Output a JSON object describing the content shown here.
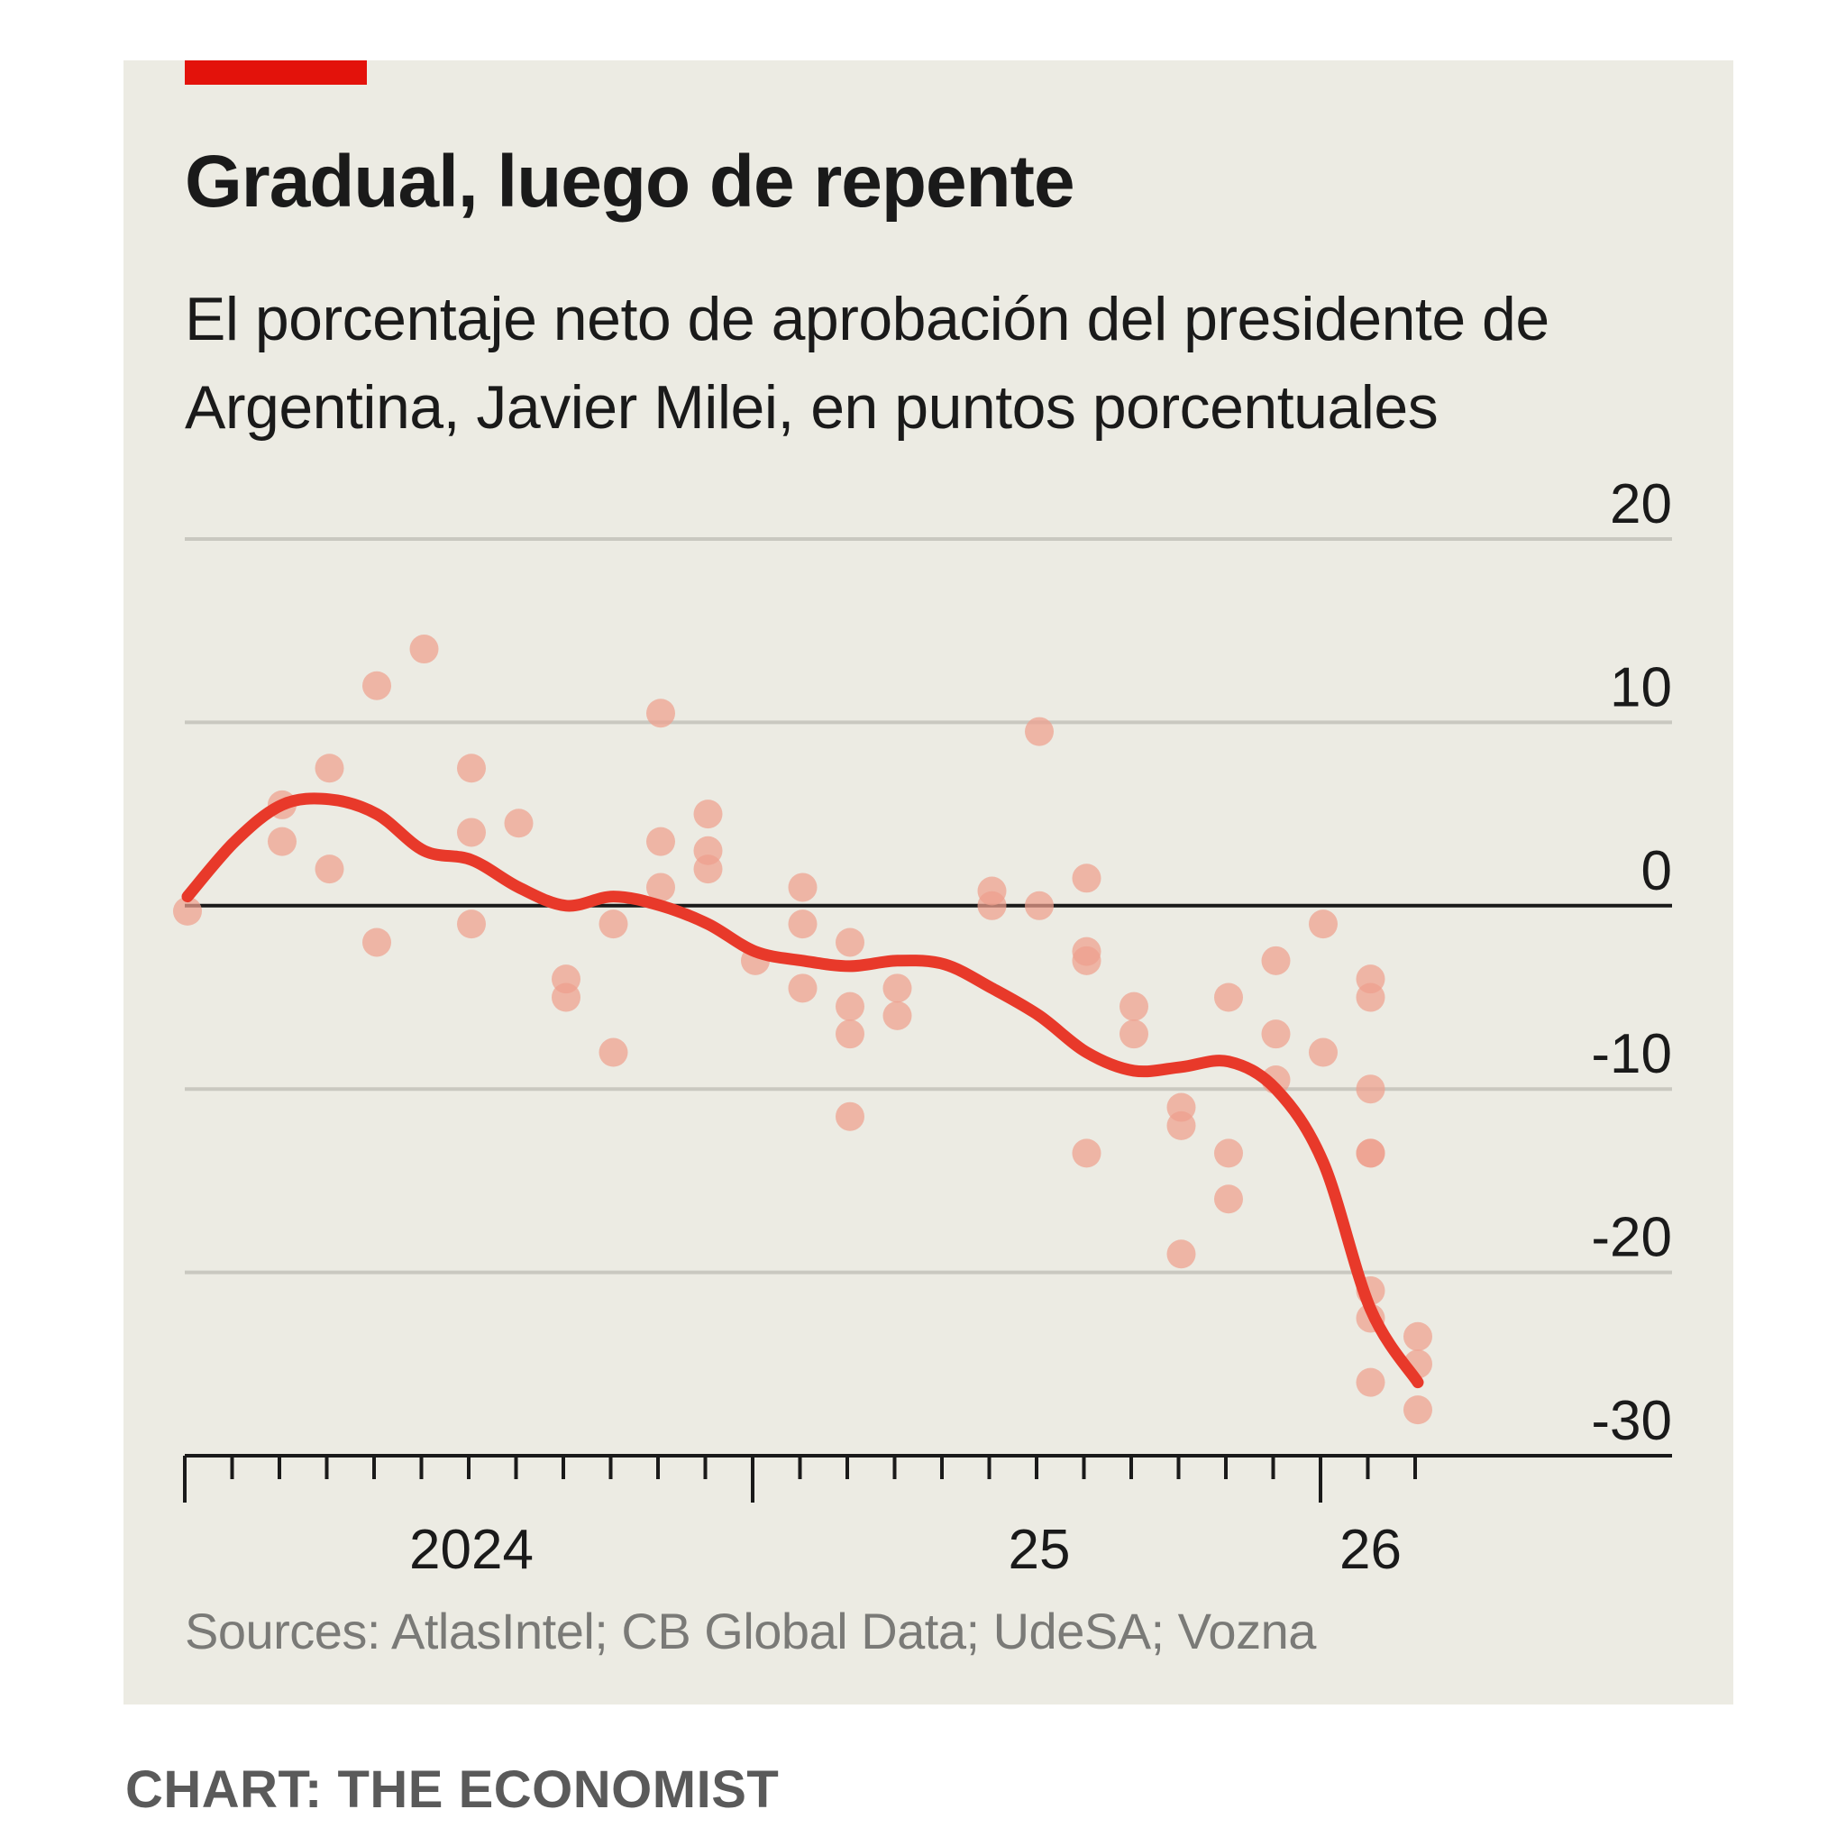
{
  "title": "Gradual, luego de repente",
  "subtitle": "El porcentaje neto de aprobación del presidente de Argentina, Javier Milei, en puntos porcentuales",
  "source": "Sources: AtlasIntel; CB Global Data; UdeSA; Vozna",
  "credit": "CHART: THE ECONOMIST",
  "colors": {
    "background": "#ecebe3",
    "accent": "#e3120b",
    "trend_line": "#e8392a",
    "dots": "#eea08e",
    "gridline": "#c9c8c0",
    "zero_line": "#1a1a1a"
  },
  "chart_data": {
    "type": "scatter",
    "title": "Gradual, luego de repente",
    "subtitle": "El porcentaje neto de aprobación del presidente de Argentina, Javier Milei, en puntos porcentuales",
    "ylim": [
      -30,
      20
    ],
    "y_ticks": [
      20,
      10,
      0,
      -10,
      -20,
      -30
    ],
    "y_tick_labels": [
      "20",
      "10",
      "0",
      "-10",
      "-20",
      "-30"
    ],
    "y_axis_position": "right",
    "x_range": [
      "2023-12",
      "2026-02"
    ],
    "x_tick_labels": [
      {
        "x": "2024-06",
        "label": "2024"
      },
      {
        "x": "2025-06",
        "label": "25"
      },
      {
        "x": "2026-01",
        "label": "26"
      }
    ],
    "grid": true,
    "series": [
      {
        "kind": "points",
        "values": [
          {
            "x": "2023-12",
            "y": -0.3
          },
          {
            "x": "2024-02",
            "y": 5.5
          },
          {
            "x": "2024-02",
            "y": 3.5
          },
          {
            "x": "2024-03",
            "y": 7.5
          },
          {
            "x": "2024-03",
            "y": 2
          },
          {
            "x": "2024-04",
            "y": 12
          },
          {
            "x": "2024-04",
            "y": -2
          },
          {
            "x": "2024-05",
            "y": 14
          },
          {
            "x": "2024-06",
            "y": 7.5
          },
          {
            "x": "2024-06",
            "y": 4
          },
          {
            "x": "2024-06",
            "y": -1
          },
          {
            "x": "2024-07",
            "y": 4.5
          },
          {
            "x": "2024-08",
            "y": -4
          },
          {
            "x": "2024-08",
            "y": -5
          },
          {
            "x": "2024-09",
            "y": -1
          },
          {
            "x": "2024-09",
            "y": -8
          },
          {
            "x": "2024-10",
            "y": 10.5
          },
          {
            "x": "2024-10",
            "y": 3.5
          },
          {
            "x": "2024-10",
            "y": 1
          },
          {
            "x": "2024-11",
            "y": 5
          },
          {
            "x": "2024-11",
            "y": 3
          },
          {
            "x": "2024-11",
            "y": 2
          },
          {
            "x": "2024-12",
            "y": -3
          },
          {
            "x": "2025-01",
            "y": 1
          },
          {
            "x": "2025-01",
            "y": -1
          },
          {
            "x": "2025-01",
            "y": -4.5
          },
          {
            "x": "2025-02",
            "y": -2
          },
          {
            "x": "2025-02",
            "y": -5.5
          },
          {
            "x": "2025-02",
            "y": -7
          },
          {
            "x": "2025-02",
            "y": -11.5
          },
          {
            "x": "2025-03",
            "y": -4.5
          },
          {
            "x": "2025-03",
            "y": -6
          },
          {
            "x": "2025-05",
            "y": 0.8
          },
          {
            "x": "2025-05",
            "y": 0
          },
          {
            "x": "2025-06",
            "y": 9.5
          },
          {
            "x": "2025-06",
            "y": 0
          },
          {
            "x": "2025-07",
            "y": 1.5
          },
          {
            "x": "2025-07",
            "y": -2.5
          },
          {
            "x": "2025-07",
            "y": -3
          },
          {
            "x": "2025-07",
            "y": -13.5
          },
          {
            "x": "2025-08",
            "y": -5.5
          },
          {
            "x": "2025-08",
            "y": -7
          },
          {
            "x": "2025-09",
            "y": -11
          },
          {
            "x": "2025-09",
            "y": -12
          },
          {
            "x": "2025-09",
            "y": -19
          },
          {
            "x": "2025-10",
            "y": -5
          },
          {
            "x": "2025-10",
            "y": -13.5
          },
          {
            "x": "2025-10",
            "y": -16
          },
          {
            "x": "2025-11",
            "y": -3
          },
          {
            "x": "2025-11",
            "y": -7
          },
          {
            "x": "2025-11",
            "y": -9.5
          },
          {
            "x": "2025-12",
            "y": -1
          },
          {
            "x": "2025-12",
            "y": -8
          },
          {
            "x": "2026-01",
            "y": -4
          },
          {
            "x": "2026-01",
            "y": -5
          },
          {
            "x": "2026-01",
            "y": -10
          },
          {
            "x": "2026-01",
            "y": -13.5
          },
          {
            "x": "2026-01",
            "y": -13.5
          },
          {
            "x": "2026-01",
            "y": -21
          },
          {
            "x": "2026-01",
            "y": -22.5
          },
          {
            "x": "2026-01",
            "y": -26
          },
          {
            "x": "2026-02",
            "y": -23.5
          },
          {
            "x": "2026-02",
            "y": -25
          },
          {
            "x": "2026-02",
            "y": -27.5
          }
        ]
      },
      {
        "kind": "trend",
        "values": [
          {
            "x": "2023-12",
            "y": 0.5
          },
          {
            "x": "2024-01",
            "y": 3.5
          },
          {
            "x": "2024-02",
            "y": 5.5
          },
          {
            "x": "2024-03",
            "y": 5.8
          },
          {
            "x": "2024-04",
            "y": 5
          },
          {
            "x": "2024-05",
            "y": 3
          },
          {
            "x": "2024-06",
            "y": 2.5
          },
          {
            "x": "2024-07",
            "y": 1
          },
          {
            "x": "2024-08",
            "y": 0
          },
          {
            "x": "2024-09",
            "y": 0.5
          },
          {
            "x": "2024-10",
            "y": 0
          },
          {
            "x": "2024-11",
            "y": -1
          },
          {
            "x": "2024-12",
            "y": -2.5
          },
          {
            "x": "2025-01",
            "y": -3
          },
          {
            "x": "2025-02",
            "y": -3.3
          },
          {
            "x": "2025-03",
            "y": -3
          },
          {
            "x": "2025-04",
            "y": -3.2
          },
          {
            "x": "2025-05",
            "y": -4.5
          },
          {
            "x": "2025-06",
            "y": -6
          },
          {
            "x": "2025-07",
            "y": -8
          },
          {
            "x": "2025-08",
            "y": -9
          },
          {
            "x": "2025-09",
            "y": -8.8
          },
          {
            "x": "2025-10",
            "y": -8.5
          },
          {
            "x": "2025-11",
            "y": -10
          },
          {
            "x": "2025-12",
            "y": -14
          },
          {
            "x": "2026-01",
            "y": -22
          },
          {
            "x": "2026-02",
            "y": -26
          }
        ]
      }
    ]
  }
}
